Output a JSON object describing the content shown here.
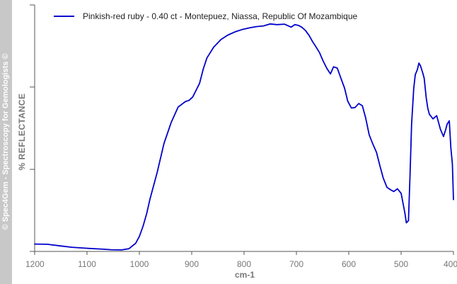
{
  "watermark": "© Spec4Gem - Spectroscopy for Gemologists ©",
  "chart_data": {
    "type": "line",
    "xlabel": "cm-1",
    "ylabel": "%  REFLECTANCE",
    "xlim": [
      1200,
      400
    ],
    "x_reversed": true,
    "x_ticks": [
      1200,
      1100,
      1000,
      900,
      800,
      700,
      600,
      500,
      400
    ],
    "y_ticks_labeled": false,
    "grid": false,
    "legend_position": "top-left",
    "colors": {
      "series": "#0000cc",
      "axis": "#555555",
      "text": "#777777",
      "band": "#c8c8c8"
    },
    "series": [
      {
        "name": "Pinkish-red ruby - 0.40 ct - Montepuez, Niassa, Republic Of Mozambique",
        "x": [
          1200,
          1176,
          1150,
          1129,
          1109,
          1095,
          1068,
          1054,
          1034,
          1020,
          1007,
          1000,
          993,
          986,
          980,
          966,
          953,
          939,
          926,
          912,
          905,
          898,
          885,
          878,
          871,
          858,
          844,
          831,
          817,
          804,
          790,
          777,
          763,
          750,
          737,
          723,
          710,
          703,
          696,
          690,
          683,
          676,
          669,
          663,
          656,
          649,
          642,
          635,
          629,
          622,
          615,
          608,
          602,
          595,
          588,
          581,
          574,
          568,
          561,
          554,
          547,
          541,
          534,
          527,
          520,
          514,
          507,
          500,
          493,
          490,
          486,
          483,
          480,
          476,
          473,
          469,
          466,
          463,
          459,
          456,
          452,
          449,
          446,
          439,
          432,
          425,
          419,
          415,
          412,
          408,
          405,
          402,
          400
        ],
        "values": [
          3.0,
          2.9,
          2.2,
          1.7,
          1.4,
          1.2,
          0.9,
          0.7,
          0.6,
          1.1,
          3.3,
          6.1,
          10.2,
          15.4,
          21.0,
          32.1,
          43.8,
          52.4,
          58.6,
          60.8,
          61.3,
          62.7,
          68.2,
          74.0,
          78.5,
          82.9,
          86.0,
          87.8,
          89.1,
          90.0,
          90.7,
          91.2,
          91.5,
          92.3,
          92.0,
          92.2,
          91.0,
          92.0,
          91.7,
          91.0,
          89.7,
          87.7,
          85.1,
          83.1,
          80.7,
          77.3,
          74.3,
          72.0,
          74.9,
          74.4,
          70.3,
          66.2,
          61.0,
          58.2,
          58.4,
          60.0,
          59.1,
          54.4,
          47.3,
          43.6,
          40.2,
          35.1,
          29.7,
          26.0,
          25.0,
          24.3,
          25.4,
          23.6,
          15.8,
          11.6,
          12.5,
          30.9,
          51.5,
          66.0,
          71.7,
          73.7,
          76.4,
          75.3,
          72.7,
          70.3,
          62.3,
          58.1,
          55.6,
          53.8,
          55.1,
          49.6,
          46.6,
          49.3,
          51.7,
          53.0,
          42.1,
          35.4,
          21.0
        ]
      }
    ]
  }
}
